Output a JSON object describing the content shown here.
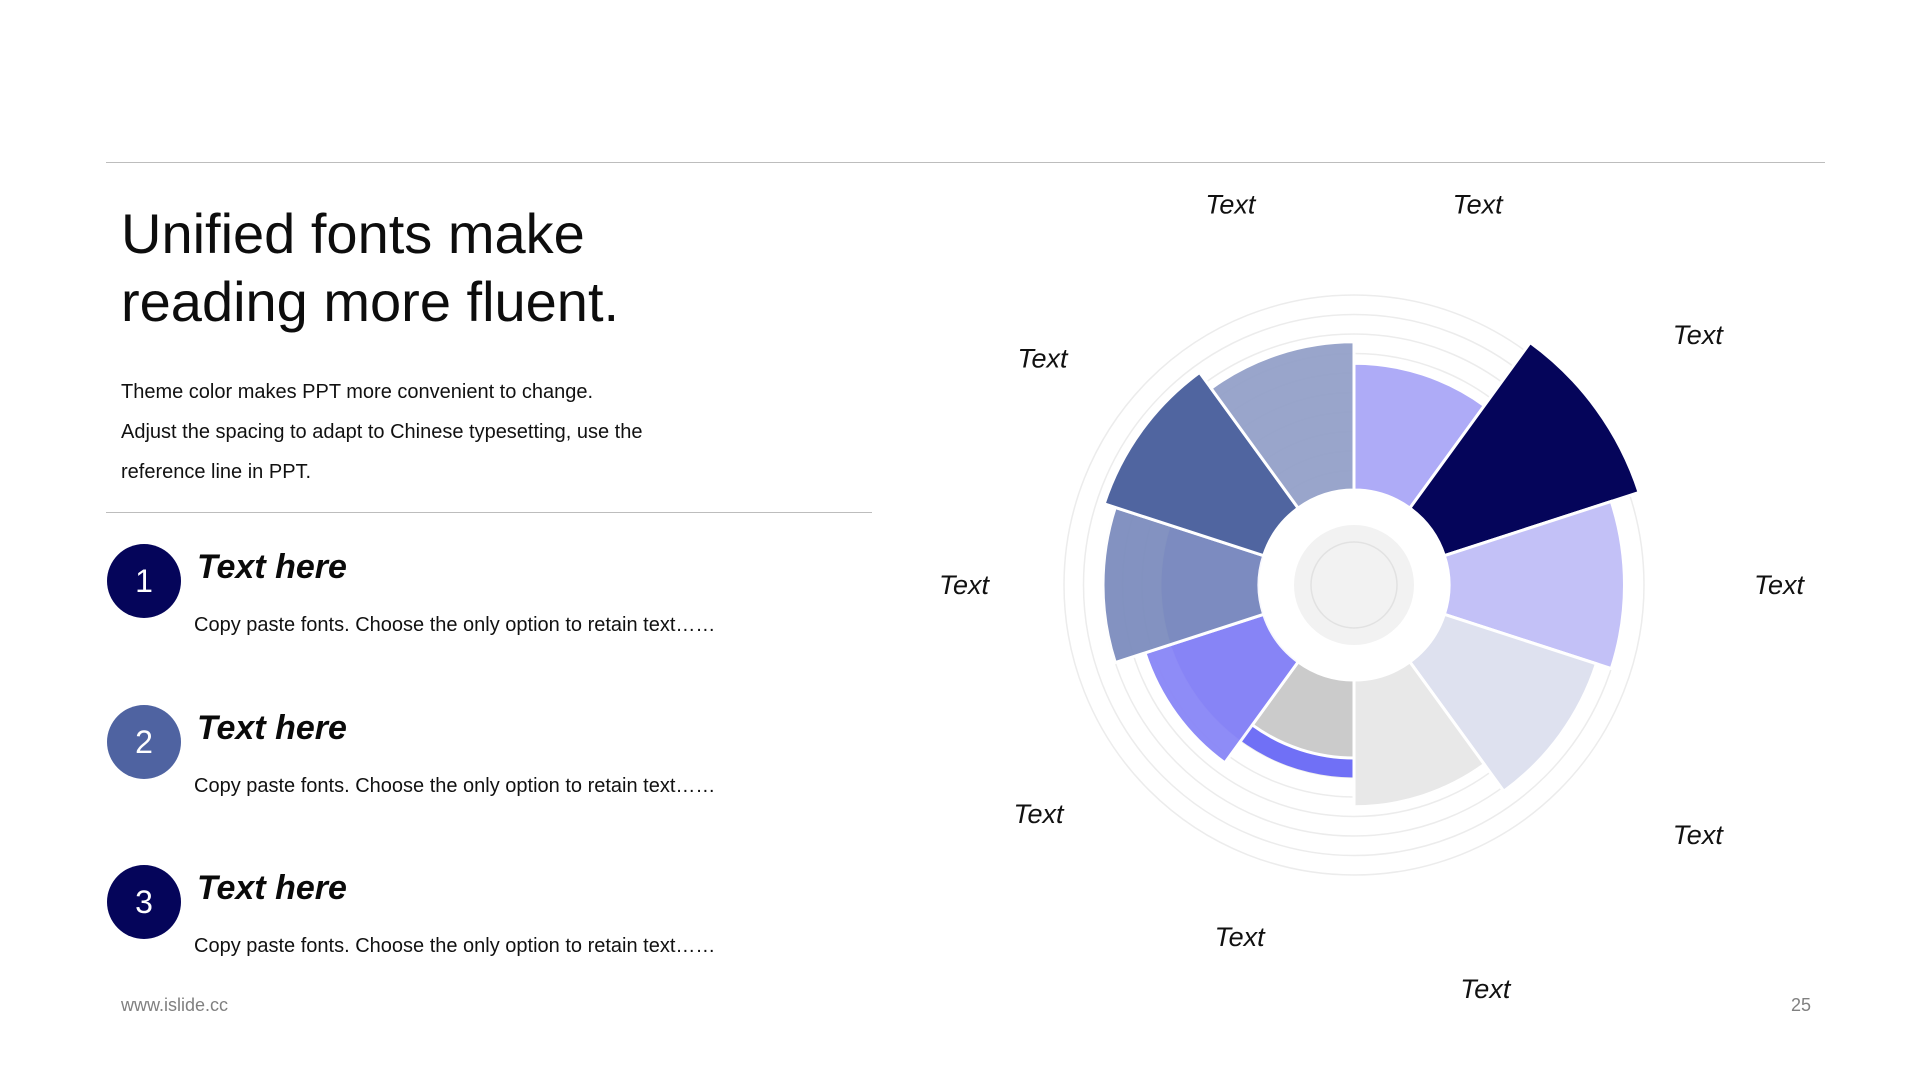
{
  "title_line1": "Unified fonts make",
  "title_line2": "reading more fluent.",
  "subtitle": [
    "Theme color makes PPT more convenient  to change.",
    "Adjust  the  spacing  to adapt  to Chinese  typesetting,  use the",
    "reference  line  in  PPT."
  ],
  "items": [
    {
      "number": "1",
      "title": "Text here",
      "desc": "Copy paste fonts. Choose the only option to retain text……",
      "color": "#05055a"
    },
    {
      "number": "2",
      "title": "Text here",
      "desc": "Copy paste fonts. Choose the only option to retain text……",
      "color": "#4f63a1"
    },
    {
      "number": "3",
      "title": "Text here",
      "desc": "Copy paste fonts. Choose the only option to retain text……",
      "color": "#05055a"
    }
  ],
  "footer": {
    "url": "www.islide.cc",
    "page": "25"
  },
  "chart_data": {
    "type": "polar-area",
    "title": "",
    "categories": [
      "Text",
      "Text",
      "Text",
      "Text",
      "Text",
      "Text",
      "Text",
      "Text",
      "Text",
      "Text"
    ],
    "values": [
      6.5,
      10.5,
      9.0,
      8.2,
      6.5,
      4.0,
      6.4,
      8.0,
      8.6,
      7.6
    ],
    "colors": [
      "#aeabf7",
      "#05055a",
      "#c3c1f7",
      "#dee1ef",
      "#e8e8e8",
      "#cbcbcb",
      "#8986f7",
      "#7d8dbe",
      "#5065a0",
      "#94a1c9"
    ],
    "rlim": [
      0,
      10
    ],
    "grid": true,
    "extra_wedge": {
      "value": 5,
      "color": "#6060f5"
    }
  }
}
